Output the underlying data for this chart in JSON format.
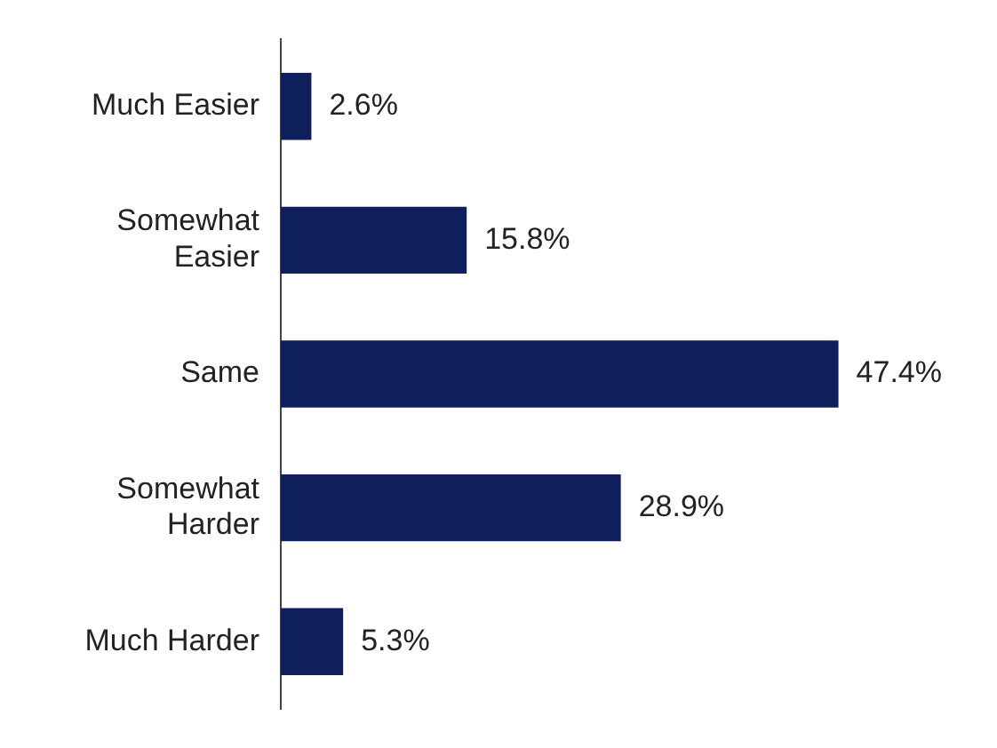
{
  "chart_data": {
    "type": "bar",
    "orientation": "horizontal",
    "categories": [
      "Much Easier",
      "Somewhat Easier",
      "Same",
      "Somewhat Harder",
      "Much Harder"
    ],
    "values": [
      2.6,
      15.8,
      47.4,
      28.9,
      5.3
    ],
    "value_labels": [
      "2.6%",
      "15.8%",
      "47.4%",
      "28.9%",
      "5.3%"
    ],
    "color": "#0f1f5c",
    "tick_labels": "y",
    "grid": false,
    "legend": false
  }
}
